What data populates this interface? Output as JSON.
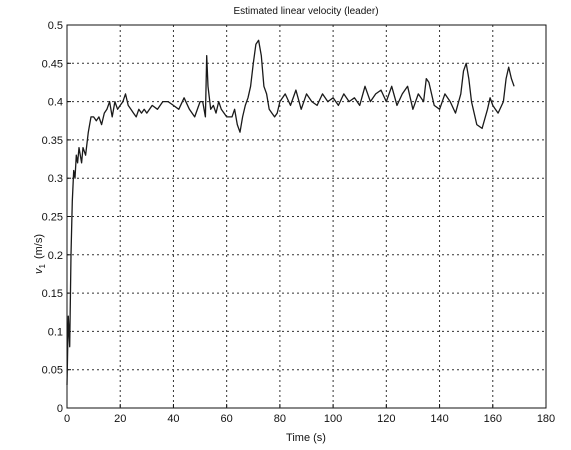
{
  "chart_data": {
    "type": "line",
    "title": "Estimated linear velocity (leader)",
    "xlabel": "Time (s)",
    "ylabel_main": "v",
    "ylabel_sub": "1",
    "ylabel_unit": "(m/s)",
    "xlim": [
      0,
      180
    ],
    "ylim": [
      0,
      0.5
    ],
    "xticks": [
      0,
      20,
      40,
      60,
      80,
      100,
      120,
      140,
      160,
      180
    ],
    "yticks": [
      0,
      0.05,
      0.1,
      0.15,
      0.2,
      0.25,
      0.3,
      0.35,
      0.4,
      0.45,
      0.5
    ],
    "xtick_labels": [
      "0",
      "20",
      "40",
      "60",
      "80",
      "100",
      "120",
      "140",
      "160",
      "180"
    ],
    "ytick_labels": [
      "0",
      "0.05",
      "0.1",
      "0.15",
      "0.2",
      "0.25",
      "0.3",
      "0.35",
      "0.4",
      "0.45",
      "0.5"
    ],
    "grid": true,
    "series": [
      {
        "x": [
          0,
          0.5,
          1,
          1.5,
          2,
          2.5,
          3,
          3.5,
          4,
          4.5,
          5,
          5.5,
          6,
          7,
          8,
          9,
          10,
          11,
          12,
          13,
          14,
          15,
          16,
          17,
          18,
          19,
          20,
          21,
          22,
          23,
          24,
          25,
          26,
          27,
          28,
          29,
          30,
          32,
          34,
          36,
          38,
          40,
          42,
          44,
          46,
          48,
          50,
          51,
          52,
          52.5,
          53,
          54,
          55,
          56,
          57,
          58,
          60,
          62,
          63,
          64,
          65,
          66,
          67,
          68,
          69,
          70,
          71,
          72,
          73,
          74,
          75,
          76,
          77,
          78,
          79,
          80,
          82,
          84,
          86,
          88,
          90,
          92,
          94,
          96,
          98,
          100,
          102,
          104,
          106,
          108,
          110,
          112,
          114,
          116,
          118,
          120,
          122,
          124,
          126,
          128,
          130,
          132,
          134,
          135,
          136,
          138,
          140,
          142,
          144,
          146,
          148,
          149,
          150,
          151,
          152,
          154,
          156,
          158,
          159,
          160,
          161,
          162,
          164,
          165,
          166,
          167,
          168
        ],
        "y": [
          0.03,
          0.12,
          0.08,
          0.2,
          0.27,
          0.31,
          0.3,
          0.33,
          0.32,
          0.34,
          0.33,
          0.32,
          0.34,
          0.33,
          0.36,
          0.38,
          0.38,
          0.375,
          0.38,
          0.37,
          0.385,
          0.39,
          0.4,
          0.38,
          0.4,
          0.39,
          0.395,
          0.4,
          0.41,
          0.395,
          0.39,
          0.385,
          0.38,
          0.39,
          0.385,
          0.39,
          0.385,
          0.395,
          0.39,
          0.4,
          0.4,
          0.395,
          0.39,
          0.405,
          0.39,
          0.38,
          0.4,
          0.4,
          0.38,
          0.46,
          0.42,
          0.39,
          0.395,
          0.385,
          0.4,
          0.39,
          0.38,
          0.38,
          0.39,
          0.37,
          0.36,
          0.38,
          0.395,
          0.405,
          0.42,
          0.45,
          0.475,
          0.48,
          0.46,
          0.42,
          0.41,
          0.39,
          0.385,
          0.38,
          0.385,
          0.4,
          0.41,
          0.395,
          0.415,
          0.39,
          0.41,
          0.4,
          0.395,
          0.41,
          0.4,
          0.405,
          0.395,
          0.41,
          0.4,
          0.405,
          0.395,
          0.42,
          0.4,
          0.41,
          0.415,
          0.4,
          0.42,
          0.395,
          0.41,
          0.42,
          0.39,
          0.41,
          0.4,
          0.43,
          0.425,
          0.395,
          0.39,
          0.41,
          0.4,
          0.385,
          0.41,
          0.44,
          0.45,
          0.43,
          0.4,
          0.37,
          0.365,
          0.39,
          0.405,
          0.395,
          0.39,
          0.385,
          0.4,
          0.43,
          0.445,
          0.43,
          0.42
        ]
      }
    ]
  }
}
